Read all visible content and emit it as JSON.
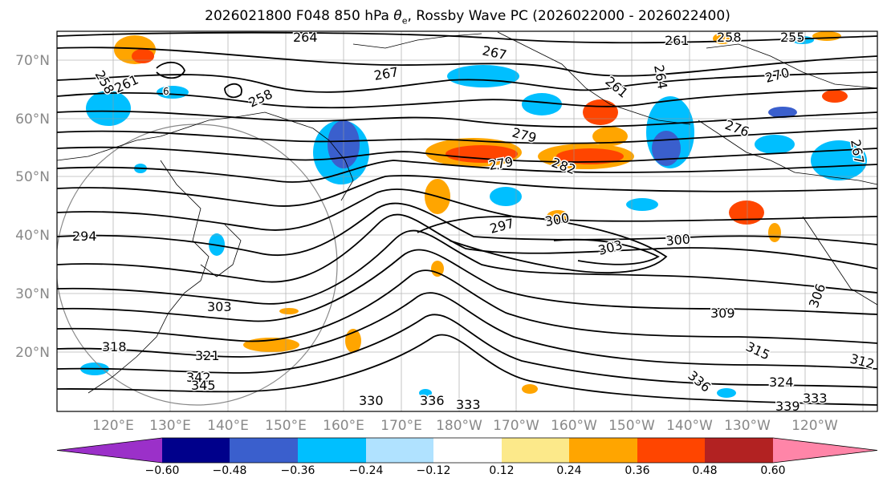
{
  "title": {
    "prefix": "2026021800 F048 850 hPa ",
    "theta_symbol": "θ",
    "theta_sub": "e",
    "suffix": ", Rossby Wave PC (2026022000 - 2026022400)"
  },
  "lat_labels": [
    "70°N",
    "60°N",
    "50°N",
    "40°N",
    "30°N",
    "20°N"
  ],
  "lon_labels": [
    "120°E",
    "130°E",
    "140°E",
    "150°E",
    "160°E",
    "170°E",
    "180°W",
    "170°W",
    "160°W",
    "150°W",
    "140°W",
    "130°W",
    "120°W"
  ],
  "contour_labels": [
    "264",
    "267",
    "261",
    "258",
    "255",
    "258",
    "261",
    "267",
    "258",
    "261",
    "264",
    "270",
    "279",
    "276",
    "267",
    "282",
    "279",
    "294",
    "297",
    "300",
    "303",
    "300",
    "303",
    "309",
    "306",
    "315",
    "318",
    "321",
    "342",
    "345",
    "330",
    "336",
    "333",
    "336",
    "324",
    "333",
    "339",
    "312",
    "6"
  ],
  "colorbar": {
    "ticks": [
      "−0.60",
      "−0.48",
      "−0.36",
      "−0.24",
      "−0.12",
      "0.12",
      "0.24",
      "0.36",
      "0.48",
      "0.60"
    ],
    "colors": [
      "#9b30c9",
      "#00008b",
      "#3a5fcd",
      "#00bfff",
      "#b0e2ff",
      "#ffffff",
      "#fce98a",
      "#ffa500",
      "#ff4500",
      "#b22222",
      "#ff85a8"
    ]
  }
}
